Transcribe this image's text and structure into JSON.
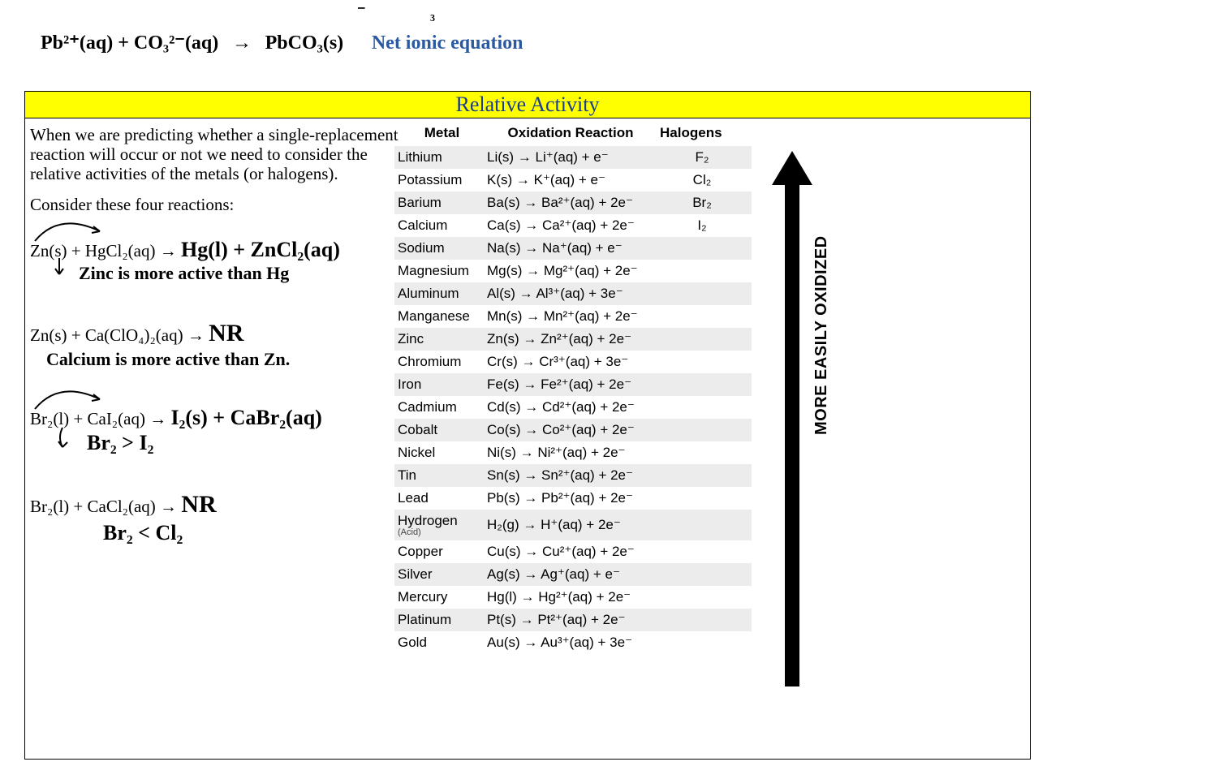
{
  "top_handwriting": {
    "equation_lhs": "Pb²⁺(aq) + CO₃²⁻(aq)",
    "arrow": "→",
    "equation_rhs": "PbCO₃(s)",
    "label": "Net ionic equation"
  },
  "banner": {
    "title": "Relative Activity",
    "bg": "#ffff00",
    "title_color": "#1a3e8c"
  },
  "intro": {
    "p1": "When we are predicting whether a single-replacement reaction will occur or not we need to consider the relative activities of the metals (or halogens).",
    "p2": "Consider these four reactions:"
  },
  "reactions": [
    {
      "printed": "Zn(s) + HgCl₂(aq) →",
      "hand": "Hg(l) + ZnCl₂(aq)",
      "note": "Zinc is more active than Hg",
      "curve": true
    },
    {
      "printed": "Zn(s) + Ca(ClO₄)₂(aq) →",
      "hand": "NR",
      "note": "Calcium is more active than Zn.",
      "curve": false
    },
    {
      "printed": "Br₂(l) + CaI₂(aq) →",
      "hand": "I₂(s) + CaBr₂(aq)",
      "note": "Br₂ > I₂",
      "curve": true
    },
    {
      "printed": "Br₂(l) + CaCl₂(aq) →",
      "hand": "NR",
      "note": "Br₂ < Cl₂",
      "curve": false
    }
  ],
  "table": {
    "headers": {
      "c1": "Metal",
      "c2": "Oxidation Reaction",
      "c3": "Halogens"
    },
    "rows": [
      {
        "metal": "Lithium",
        "rxn": "Li(s) → Li⁺(aq) + e⁻",
        "hal": "F₂"
      },
      {
        "metal": "Potassium",
        "rxn": "K(s) → K⁺(aq) + e⁻",
        "hal": "Cl₂"
      },
      {
        "metal": "Barium",
        "rxn": "Ba(s) → Ba²⁺(aq) + 2e⁻",
        "hal": "Br₂"
      },
      {
        "metal": "Calcium",
        "rxn": "Ca(s) → Ca²⁺(aq) + 2e⁻",
        "hal": "I₂"
      },
      {
        "metal": "Sodium",
        "rxn": "Na(s) → Na⁺(aq) + e⁻",
        "hal": ""
      },
      {
        "metal": "Magnesium",
        "rxn": "Mg(s) → Mg²⁺(aq) + 2e⁻",
        "hal": ""
      },
      {
        "metal": "Aluminum",
        "rxn": "Al(s) → Al³⁺(aq) + 3e⁻",
        "hal": ""
      },
      {
        "metal": "Manganese",
        "rxn": "Mn(s) → Mn²⁺(aq) + 2e⁻",
        "hal": ""
      },
      {
        "metal": "Zinc",
        "rxn": "Zn(s) → Zn²⁺(aq) + 2e⁻",
        "hal": ""
      },
      {
        "metal": "Chromium",
        "rxn": "Cr(s) → Cr³⁺(aq) + 3e⁻",
        "hal": ""
      },
      {
        "metal": "Iron",
        "rxn": "Fe(s) → Fe²⁺(aq) + 2e⁻",
        "hal": ""
      },
      {
        "metal": "Cadmium",
        "rxn": "Cd(s) → Cd²⁺(aq) + 2e⁻",
        "hal": ""
      },
      {
        "metal": "Cobalt",
        "rxn": "Co(s) → Co²⁺(aq) + 2e⁻",
        "hal": ""
      },
      {
        "metal": "Nickel",
        "rxn": "Ni(s) → Ni²⁺(aq) + 2e⁻",
        "hal": ""
      },
      {
        "metal": "Tin",
        "rxn": "Sn(s) → Sn²⁺(aq) + 2e⁻",
        "hal": ""
      },
      {
        "metal": "Lead",
        "rxn": "Pb(s) → Pb²⁺(aq) + 2e⁻",
        "hal": ""
      },
      {
        "metal": "Hydrogen",
        "rxn": "H₂(g) → H⁺(aq) + 2e⁻",
        "hal": "",
        "acid": "(Acid)"
      },
      {
        "metal": "Copper",
        "rxn": "Cu(s) → Cu²⁺(aq) + 2e⁻",
        "hal": ""
      },
      {
        "metal": "Silver",
        "rxn": "Ag(s) → Ag⁺(aq) + e⁻",
        "hal": ""
      },
      {
        "metal": "Mercury",
        "rxn": "Hg(l) → Hg²⁺(aq) + 2e⁻",
        "hal": ""
      },
      {
        "metal": "Platinum",
        "rxn": "Pt(s) → Pt²⁺(aq) + 2e⁻",
        "hal": ""
      },
      {
        "metal": "Gold",
        "rxn": "Au(s) → Au³⁺(aq) + 3e⁻",
        "hal": ""
      }
    ]
  },
  "arrow": {
    "label": "MORE EASILY OXIDIZED",
    "fill": "#000000"
  }
}
